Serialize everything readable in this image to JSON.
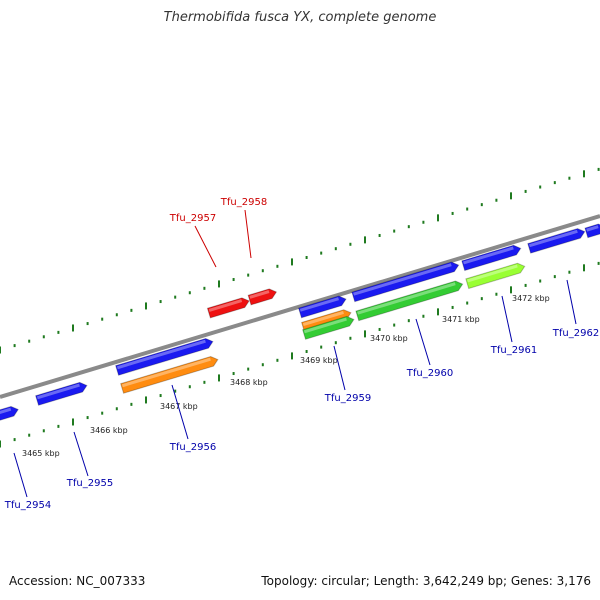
{
  "title": "Thermobifida fusca YX, complete genome",
  "footer": {
    "accession": "Accession: NC_007333",
    "stats": "Topology: circular; Length: 3,642,249 bp; Genes: 3,176"
  },
  "colors": {
    "backbone": "#8a8a8a",
    "tick": "#1f7a1f",
    "forward_gene": "#1a1af0",
    "highlight_gene": "#ee1111",
    "orange_gene": "#ff8c10",
    "green_gene": "#33cc33",
    "lightgreen_gene": "#99ff33",
    "label_default": "#0000aa",
    "label_highlight": "#cc0000"
  },
  "kbp_labels": [
    "3465 kbp",
    "3466 kbp",
    "3467 kbp",
    "3468 kbp",
    "3469 kbp",
    "3470 kbp",
    "3471 kbp",
    "3472 kbp"
  ],
  "genes": [
    {
      "name": "Tfu_2954",
      "color": "forward_gene",
      "label_color": "label_default"
    },
    {
      "name": "Tfu_2955",
      "color": "forward_gene",
      "label_color": "label_default"
    },
    {
      "name": "Tfu_2956",
      "color": "forward_gene",
      "label_color": "label_default"
    },
    {
      "name": "Tfu_2957",
      "color": "highlight_gene",
      "label_color": "label_highlight"
    },
    {
      "name": "Tfu_2958",
      "color": "highlight_gene",
      "label_color": "label_highlight"
    },
    {
      "name": "Tfu_2959",
      "color": "forward_gene",
      "label_color": "label_default"
    },
    {
      "name": "Tfu_2960",
      "color": "forward_gene",
      "label_color": "label_default"
    },
    {
      "name": "Tfu_2961",
      "color": "forward_gene",
      "label_color": "label_default"
    },
    {
      "name": "Tfu_2962",
      "color": "forward_gene",
      "label_color": "label_default"
    }
  ]
}
